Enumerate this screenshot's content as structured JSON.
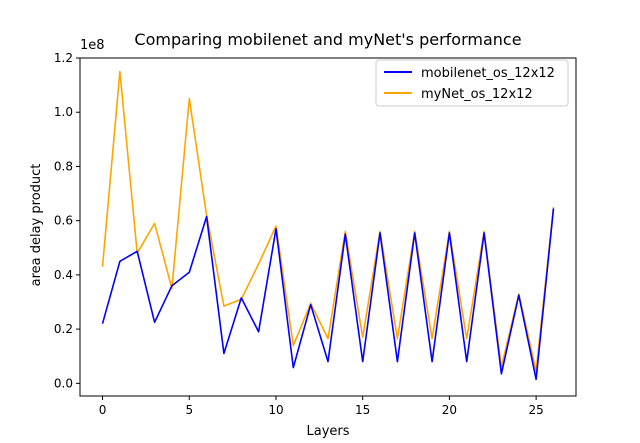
{
  "chart_data": {
    "type": "line",
    "title": "Comparing mobilenet and myNet's performance",
    "xlabel": "Layers",
    "ylabel": "area delay product",
    "y_offset_label": "1e8",
    "xlim": [
      -1.3,
      27.3
    ],
    "ylim": [
      -0.0467,
      1.2
    ],
    "xticks": [
      0,
      5,
      10,
      15,
      20,
      25
    ],
    "xtick_labels": [
      "0",
      "5",
      "10",
      "15",
      "20",
      "25"
    ],
    "yticks": [
      0.0,
      0.2,
      0.4,
      0.6,
      0.8,
      1.0,
      1.2
    ],
    "ytick_labels": [
      "0.0",
      "0.2",
      "0.4",
      "0.6",
      "0.8",
      "1.0",
      "1.2"
    ],
    "grid": false,
    "legend_position": "top-right",
    "x": [
      0,
      1,
      2,
      3,
      4,
      5,
      6,
      7,
      8,
      9,
      10,
      11,
      12,
      13,
      14,
      15,
      16,
      17,
      18,
      19,
      20,
      21,
      22,
      23,
      24,
      25,
      26
    ],
    "series": [
      {
        "name": "mobilenet_os_12x12",
        "color": "#0000ff",
        "values": [
          0.22,
          0.45,
          0.487,
          0.225,
          0.36,
          0.41,
          0.615,
          0.11,
          0.315,
          0.19,
          0.57,
          0.058,
          0.29,
          0.08,
          0.55,
          0.08,
          0.555,
          0.08,
          0.555,
          0.08,
          0.555,
          0.08,
          0.555,
          0.035,
          0.325,
          0.015,
          0.645
        ]
      },
      {
        "name": "myNet_os_12x12",
        "color": "#ffa500",
        "values": [
          0.43,
          1.15,
          0.48,
          0.59,
          0.35,
          1.05,
          0.62,
          0.285,
          0.31,
          0.44,
          0.58,
          0.14,
          0.295,
          0.165,
          0.56,
          0.17,
          0.56,
          0.165,
          0.56,
          0.165,
          0.56,
          0.165,
          0.56,
          0.06,
          0.33,
          0.045,
          0.65
        ]
      }
    ]
  }
}
